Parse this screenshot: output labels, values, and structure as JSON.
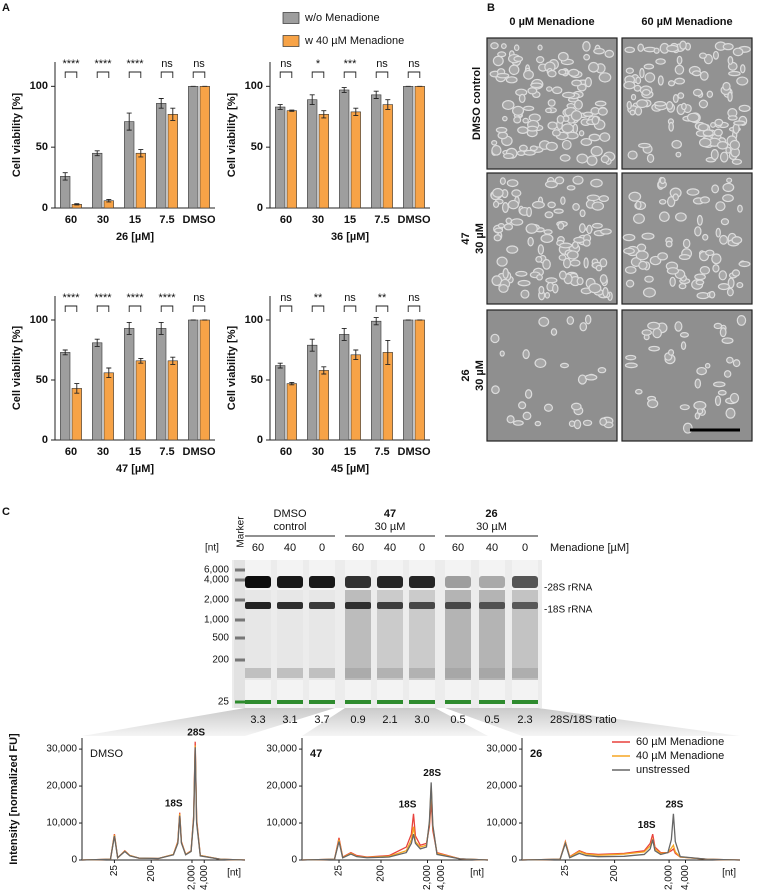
{
  "panel_labels": [
    "A",
    "B",
    "C"
  ],
  "chart_data": [
    {
      "type": "bar",
      "categories": [
        "60",
        "30",
        "15",
        "7.5",
        "DMSO"
      ],
      "x_label": "26 [µM]",
      "y_label": "Cell viability [%]",
      "ylim": [
        0,
        120
      ],
      "yticks": [
        0,
        50,
        100
      ],
      "annotations": [
        "****",
        "****",
        "****",
        "ns",
        "ns"
      ],
      "series": [
        {
          "name": "w/o Menadione",
          "color": "#9e9e9e",
          "values": [
            26,
            45,
            71,
            86,
            100
          ],
          "errors": [
            3,
            2,
            7,
            4,
            0
          ]
        },
        {
          "name": "w 40 µM Menadione",
          "color": "#f7a347",
          "values": [
            3,
            6,
            45,
            77,
            100
          ],
          "errors": [
            0.5,
            1,
            3,
            5,
            0
          ]
        }
      ]
    },
    {
      "type": "bar",
      "categories": [
        "60",
        "30",
        "15",
        "7.5",
        "DMSO"
      ],
      "x_label": "36 [µM]",
      "y_label": "Cell viability [%]",
      "ylim": [
        0,
        120
      ],
      "yticks": [
        0,
        50,
        100
      ],
      "annotations": [
        "ns",
        "*",
        "***",
        "ns",
        "ns"
      ],
      "series": [
        {
          "color": "#9e9e9e",
          "values": [
            83,
            89,
            97,
            93,
            100
          ],
          "errors": [
            2,
            4,
            2,
            3,
            0
          ]
        },
        {
          "color": "#f7a347",
          "values": [
            80,
            77,
            79,
            85,
            100
          ],
          "errors": [
            0.5,
            3,
            3,
            4,
            0
          ]
        }
      ]
    },
    {
      "type": "bar",
      "categories": [
        "60",
        "30",
        "15",
        "7.5",
        "DMSO"
      ],
      "x_label": "47 [µM]",
      "y_label": "Cell viability [%]",
      "ylim": [
        0,
        120
      ],
      "yticks": [
        0,
        50,
        100
      ],
      "annotations": [
        "****",
        "****",
        "****",
        "****",
        "ns"
      ],
      "series": [
        {
          "color": "#9e9e9e",
          "values": [
            73,
            81,
            93,
            93,
            100
          ],
          "errors": [
            2,
            3,
            5,
            5,
            0
          ]
        },
        {
          "color": "#f7a347",
          "values": [
            43,
            56,
            66,
            66,
            100
          ],
          "errors": [
            4,
            4,
            2,
            3,
            0
          ]
        }
      ]
    },
    {
      "type": "bar",
      "categories": [
        "60",
        "30",
        "15",
        "7.5",
        "DMSO"
      ],
      "x_label": "45 [µM]",
      "y_label": "Cell viability [%]",
      "ylim": [
        0,
        120
      ],
      "yticks": [
        0,
        50,
        100
      ],
      "annotations": [
        "ns",
        "**",
        "ns",
        "**",
        "ns"
      ],
      "series": [
        {
          "color": "#9e9e9e",
          "values": [
            62,
            79,
            88,
            99,
            100
          ],
          "errors": [
            2,
            5,
            5,
            3,
            0
          ]
        },
        {
          "color": "#f7a347",
          "values": [
            47,
            58,
            71,
            73,
            100
          ],
          "errors": [
            1,
            3,
            4,
            10,
            0
          ]
        }
      ]
    },
    {
      "type": "line",
      "title": "DMSO",
      "x_log": true,
      "xlim": [
        4,
        40000
      ],
      "xticks": [
        25,
        200,
        {
          "value": 2000,
          "label": "2,000"
        },
        {
          "value": 4000,
          "label": "4,000"
        }
      ],
      "x_label": "[nt]",
      "y_label": "Intensity [normalized FU]",
      "ylim": [
        0,
        33000
      ],
      "yticks": [
        0,
        {
          "value": 10000,
          "label": "10,000"
        },
        {
          "value": 20000,
          "label": "20,000"
        },
        {
          "value": 30000,
          "label": "30,000"
        }
      ],
      "peak_labels": [
        "18S",
        "28S"
      ],
      "x": [
        4,
        20,
        25,
        30,
        45,
        60,
        100,
        300,
        700,
        900,
        1000,
        1100,
        1400,
        1900,
        2200,
        2400,
        2600,
        3200,
        10000,
        40000
      ],
      "series": [
        {
          "color": "#e8413c",
          "values": [
            0,
            200,
            7000,
            600,
            2500,
            1200,
            500,
            400,
            1500,
            5000,
            12800,
            5000,
            1500,
            2500,
            12000,
            32000,
            11000,
            1200,
            200,
            0
          ]
        },
        {
          "color": "#f5a623",
          "values": [
            0,
            200,
            6800,
            600,
            2400,
            1200,
            500,
            400,
            1500,
            4800,
            12500,
            4800,
            1500,
            2400,
            11500,
            31000,
            10500,
            1200,
            200,
            0
          ]
        },
        {
          "color": "#666666",
          "values": [
            0,
            200,
            6500,
            600,
            2300,
            1100,
            500,
            400,
            1400,
            4500,
            12000,
            4600,
            1400,
            2300,
            11000,
            30500,
            10000,
            1100,
            200,
            0
          ]
        }
      ]
    },
    {
      "type": "line",
      "title": "47",
      "x_log": true,
      "xlim": [
        4,
        40000
      ],
      "xticks": [
        25,
        200,
        {
          "value": 2000,
          "label": "2,000"
        },
        {
          "value": 4000,
          "label": "4,000"
        }
      ],
      "x_label": "[nt]",
      "ylim": [
        0,
        33000
      ],
      "yticks": [
        0,
        {
          "value": 10000,
          "label": "10,000"
        },
        {
          "value": 20000,
          "label": "20,000"
        },
        {
          "value": 30000,
          "label": "30,000"
        }
      ],
      "peak_labels": [
        "18S",
        "28S"
      ],
      "x": [
        4,
        20,
        25,
        30,
        45,
        60,
        100,
        300,
        700,
        900,
        1000,
        1100,
        1400,
        1900,
        2200,
        2400,
        2600,
        3200,
        10000,
        40000
      ],
      "series": [
        {
          "color": "#e8413c",
          "values": [
            0,
            200,
            6000,
            800,
            2000,
            1200,
            800,
            1200,
            3500,
            7000,
            12500,
            6500,
            4000,
            4500,
            9000,
            16000,
            8000,
            2000,
            300,
            0
          ]
        },
        {
          "color": "#f5a623",
          "values": [
            0,
            200,
            5500,
            700,
            1800,
            1000,
            700,
            1000,
            2500,
            5500,
            9000,
            5000,
            3500,
            4000,
            10000,
            20000,
            9000,
            1800,
            300,
            0
          ]
        },
        {
          "color": "#666666",
          "values": [
            0,
            200,
            5000,
            600,
            1600,
            900,
            600,
            800,
            2000,
            4500,
            7000,
            4500,
            3000,
            3500,
            10500,
            21000,
            9500,
            1500,
            300,
            0
          ]
        }
      ]
    },
    {
      "type": "line",
      "title": "26",
      "x_log": true,
      "xlim": [
        4,
        40000
      ],
      "xticks": [
        25,
        200,
        {
          "value": 2000,
          "label": "2,000"
        },
        {
          "value": 4000,
          "label": "4,000"
        }
      ],
      "x_label": "[nt]",
      "ylim": [
        0,
        33000
      ],
      "yticks": [
        0,
        {
          "value": 10000,
          "label": "10,000"
        },
        {
          "value": 20000,
          "label": "20,000"
        },
        {
          "value": 30000,
          "label": "30,000"
        }
      ],
      "peak_labels": [
        "18S",
        "28S"
      ],
      "legend": "upper right",
      "x": [
        4,
        20,
        25,
        30,
        45,
        60,
        100,
        300,
        700,
        900,
        1000,
        1100,
        1400,
        1900,
        2200,
        2400,
        2600,
        3200,
        10000,
        40000
      ],
      "series": [
        {
          "name": "60 µM Menadione",
          "color": "#e8413c",
          "values": [
            0,
            200,
            5000,
            900,
            2500,
            1800,
            1500,
            1800,
            2500,
            4500,
            7000,
            3500,
            2000,
            2000,
            2500,
            3000,
            1800,
            800,
            200,
            0
          ]
        },
        {
          "name": "40 µM Menadione",
          "color": "#f5a623",
          "values": [
            0,
            200,
            4800,
            800,
            2300,
            1600,
            1300,
            1600,
            2200,
            3800,
            5500,
            3000,
            1800,
            2000,
            3200,
            4000,
            2200,
            800,
            200,
            0
          ]
        },
        {
          "name": "unstressed",
          "color": "#666666",
          "values": [
            0,
            200,
            4500,
            600,
            1800,
            1200,
            900,
            1000,
            1500,
            3000,
            5500,
            2500,
            1500,
            2000,
            5500,
            12500,
            5000,
            900,
            200,
            0
          ]
        }
      ]
    }
  ],
  "microscopy": {
    "columns": [
      "0 µM Menadione",
      "60 µM Menadione"
    ],
    "rows": [
      {
        "label": "DMSO control"
      },
      {
        "title": "47",
        "label": "30 µM"
      },
      {
        "title": "26",
        "label": "30 µM"
      }
    ]
  },
  "gel": {
    "marker_label": "Marker",
    "unit": "[nt]",
    "size_labels": [
      "6,000",
      "4,000",
      "2,000",
      "1,000",
      "500",
      "200",
      "25"
    ],
    "groups": [
      {
        "title": "DMSO",
        "subtitle": "control",
        "lanes": [
          "60",
          "40",
          "0"
        ]
      },
      {
        "title": "47",
        "subtitle": "30 µM",
        "lanes": [
          "60",
          "40",
          "0"
        ]
      },
      {
        "title": "26",
        "subtitle": "30 µM",
        "lanes": [
          "60",
          "40",
          "0"
        ]
      }
    ],
    "condition_label": "Menadione [µM]",
    "band_labels": [
      "-28S rRNA",
      "-18S rRNA"
    ],
    "ratios": [
      "3.3",
      "3.1",
      "3.7",
      "0.9",
      "2.1",
      "3.0",
      "0.5",
      "0.5",
      "2.3"
    ],
    "ratio_label": "28S/18S ratio"
  }
}
